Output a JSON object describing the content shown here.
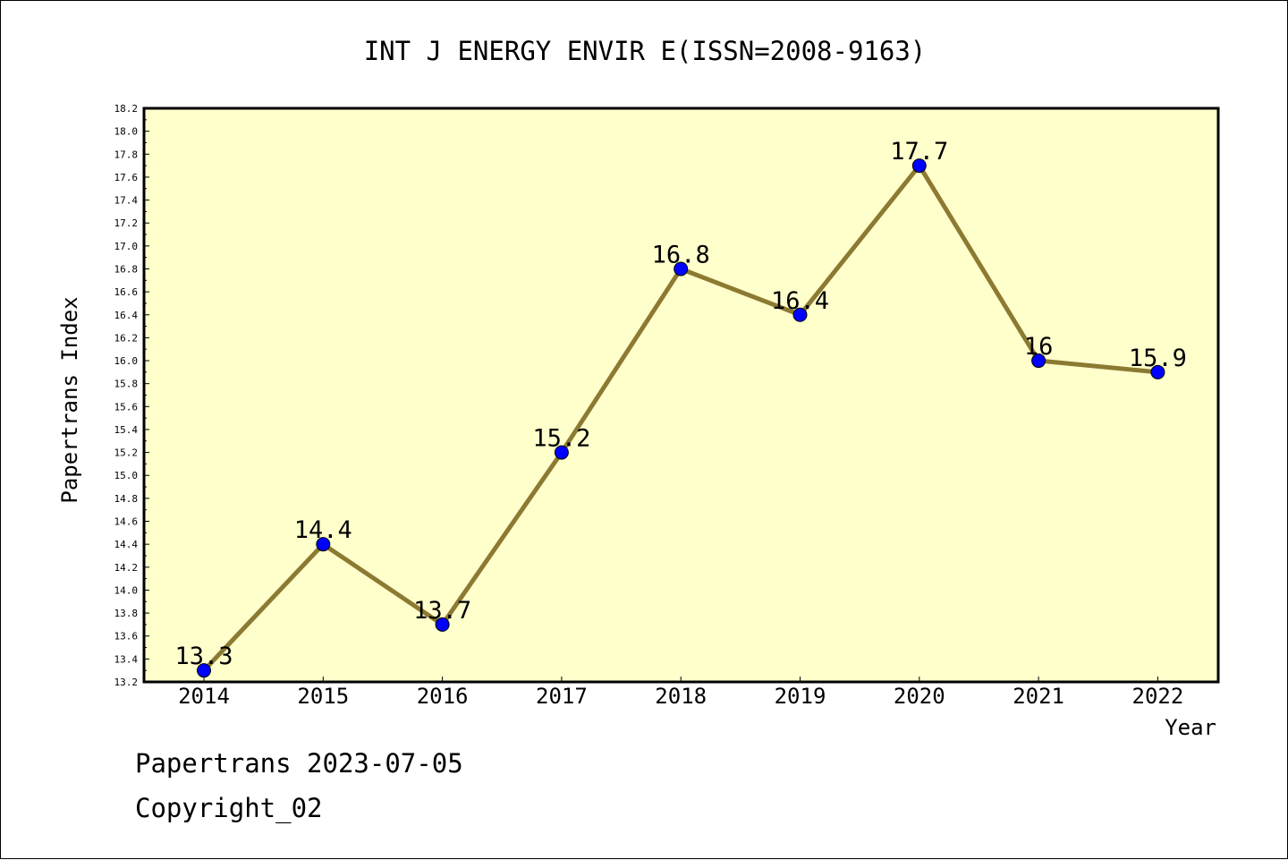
{
  "footer": {
    "line1": "Papertrans 2023-07-05",
    "line2": "Copyright_02"
  },
  "colors": {
    "plot_background": "#ffffcc",
    "line": "#8c7a32",
    "marker": "#0000ff",
    "axes": "#000000"
  },
  "chart_data": {
    "type": "line",
    "title": "INT J ENERGY ENVIR E(ISSN=2008-9163)",
    "xlabel": "Year",
    "ylabel": "Papertrans Index",
    "categories": [
      "2014",
      "2015",
      "2016",
      "2017",
      "2018",
      "2019",
      "2020",
      "2021",
      "2022"
    ],
    "series": [
      {
        "values": [
          13.3,
          14.4,
          13.7,
          15.2,
          16.8,
          16.4,
          17.7,
          16.0,
          15.9
        ],
        "labels": [
          "13.3",
          "14.4",
          "13.7",
          "15.2",
          "16.8",
          "16.4",
          "17.7",
          "16",
          "15.9"
        ]
      }
    ],
    "ylim": [
      13.2,
      18.2
    ],
    "y_ticks": [
      "13.2",
      "13.4",
      "13.6",
      "13.8",
      "14.0",
      "14.2",
      "14.4",
      "14.6",
      "14.8",
      "15.0",
      "15.2",
      "15.4",
      "15.6",
      "15.8",
      "16.0",
      "16.2",
      "16.4",
      "16.6",
      "16.8",
      "17.0",
      "17.2",
      "17.4",
      "17.6",
      "17.8",
      "18.0",
      "18.2"
    ],
    "grid": false,
    "legend": "none"
  }
}
